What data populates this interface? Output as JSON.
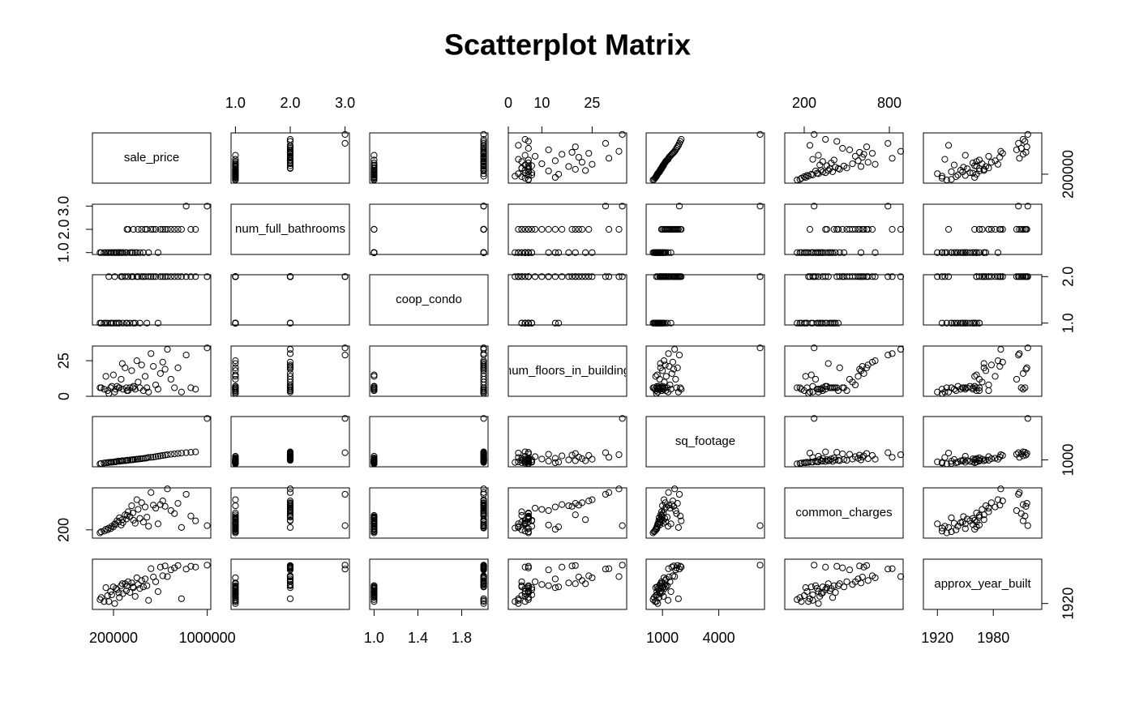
{
  "chart_data": {
    "type": "scatter_matrix",
    "title": "Scatterplot Matrix",
    "variables": [
      {
        "name": "sale_price",
        "lim": [
          20000,
          1030000
        ],
        "xticks": [
          200000,
          1000000
        ],
        "yticks": [
          200000
        ],
        "values": [
          85000,
          120000,
          150000,
          175000,
          199000,
          210000,
          230000,
          250000,
          265000,
          280000,
          299000,
          310000,
          325000,
          340000,
          355000,
          370000,
          385000,
          399000,
          410000,
          425000,
          440000,
          455000,
          470000,
          485000,
          499000,
          520000,
          540000,
          560000,
          580000,
          600000,
          620000,
          640000,
          660000,
          690000,
          720000,
          750000,
          780000,
          820000,
          860000,
          900000,
          999000,
          95000,
          135000,
          160000,
          185000,
          220000,
          245000,
          275000,
          315000,
          365000
        ]
      },
      {
        "name": "num_full_bathrooms",
        "lim": [
          0.92,
          3.08
        ],
        "xticks": [
          {
            "value": 1,
            "label": "1.0"
          },
          {
            "value": 2,
            "label": "2.0"
          },
          {
            "value": 3,
            "label": "3.0"
          }
        ],
        "yticks": [
          {
            "value": 1,
            "label": "1.0"
          },
          {
            "value": 2,
            "label": "2.0"
          },
          {
            "value": 3,
            "label": "3.0"
          }
        ],
        "values": [
          1,
          1,
          1,
          1,
          1,
          1,
          1,
          1,
          1,
          1,
          1,
          1,
          2,
          1,
          1,
          2,
          1,
          1,
          2,
          1,
          2,
          1,
          2,
          2,
          1,
          2,
          2,
          2,
          1,
          2,
          2,
          2,
          2,
          2,
          2,
          2,
          2,
          3,
          2,
          2,
          3,
          1,
          1,
          1,
          1,
          1,
          1,
          1,
          2,
          1
        ]
      },
      {
        "name": "coop_condo",
        "lim": [
          0.96,
          2.04
        ],
        "xticks": [
          {
            "value": 1,
            "label": "1.0"
          },
          {
            "value": 1.4,
            "label": "1.4"
          },
          {
            "value": 1.8,
            "label": "1.8"
          }
        ],
        "yticks": [
          {
            "value": 1,
            "label": "1.0"
          },
          {
            "value": 2,
            "label": "2.0"
          }
        ],
        "values": [
          1,
          1,
          1,
          1,
          1,
          2,
          1,
          1,
          2,
          1,
          2,
          1,
          2,
          1,
          2,
          1,
          1,
          2,
          2,
          1,
          2,
          2,
          2,
          1,
          2,
          2,
          2,
          2,
          1,
          2,
          2,
          2,
          2,
          2,
          2,
          2,
          2,
          2,
          2,
          2,
          2,
          1,
          1,
          2,
          1,
          1,
          1,
          2,
          1,
          2
        ]
      },
      {
        "name": "num_floors_in_building",
        "lim": [
          0,
          35.3
        ],
        "xticks": [
          0,
          10,
          25
        ],
        "yticks": [
          0,
          25
        ],
        "values": [
          6,
          5,
          4,
          6,
          15,
          3,
          7,
          6,
          12,
          5,
          20,
          6,
          4,
          6,
          18,
          7,
          5,
          25,
          10,
          6,
          22,
          4,
          14,
          6,
          3,
          30,
          21,
          8,
          5,
          16,
          24,
          19,
          33,
          12,
          6,
          20,
          3,
          29,
          6,
          5,
          34,
          6,
          14,
          2,
          7,
          5,
          6,
          23,
          4,
          6
        ]
      },
      {
        "name": "sq_footage",
        "lim": [
          130,
          6435
        ],
        "xticks": [
          1000,
          4000
        ],
        "yticks": [
          1000
        ],
        "values": [
          500,
          600,
          650,
          700,
          720,
          750,
          800,
          820,
          850,
          880,
          900,
          920,
          950,
          980,
          1000,
          1020,
          1050,
          1080,
          1100,
          1120,
          1150,
          1180,
          1200,
          1250,
          1300,
          1320,
          1350,
          1400,
          1450,
          1500,
          1550,
          1600,
          1650,
          1700,
          1750,
          1800,
          1850,
          1900,
          1950,
          2000,
          6200,
          550,
          640,
          680,
          710,
          760,
          840,
          890,
          960,
          1040
        ]
      },
      {
        "name": "common_charges",
        "lim": [
          63,
          897
        ],
        "xticks": [
          200,
          800
        ],
        "yticks": [
          200
        ],
        "values": [
          150,
          180,
          200,
          220,
          250,
          300,
          350,
          400,
          280,
          320,
          450,
          380,
          500,
          420,
          600,
          360,
          310,
          700,
          540,
          390,
          650,
          330,
          580,
          410,
          260,
          820,
          610,
          560,
          300,
          620,
          680,
          590,
          880,
          520,
          470,
          640,
          240,
          790,
          430,
          350,
          270,
          170,
          210,
          230,
          260,
          290,
          330,
          370,
          440,
          480
        ]
      },
      {
        "name": "approx_year_built",
        "lim": [
          1905,
          2032
        ],
        "xticks": [
          1920,
          1980
        ],
        "yticks": [
          1920
        ],
        "values": [
          1930,
          1925,
          1940,
          1950,
          1962,
          1920,
          1955,
          1935,
          1965,
          1945,
          1970,
          1952,
          1975,
          1948,
          1972,
          1960,
          1938,
          1985,
          1968,
          1958,
          1978,
          1962,
          1982,
          1965,
          1928,
          2008,
          1987,
          1975,
          1950,
          2012,
          1990,
          2015,
          1988,
          2005,
          2010,
          2016,
          1932,
          2007,
          2014,
          2012,
          2017,
          1935,
          1960,
          1925,
          1942,
          1958,
          1947,
          1970,
          1965,
          1962
        ]
      }
    ]
  }
}
